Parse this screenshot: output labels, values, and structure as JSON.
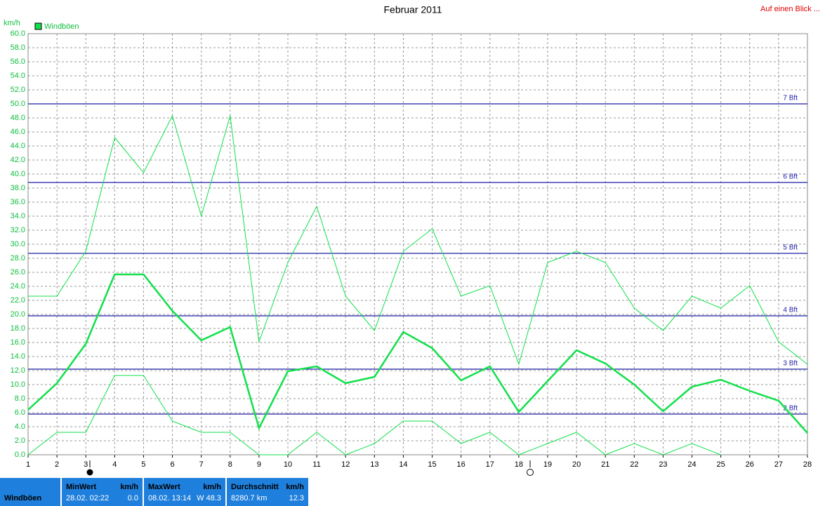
{
  "chart_data": {
    "type": "line",
    "title": "Februar 2011",
    "y_label": "km/h",
    "link": "Auf einen Blick ...",
    "x": [
      1,
      2,
      3,
      4,
      5,
      6,
      7,
      8,
      9,
      10,
      11,
      12,
      13,
      14,
      15,
      16,
      17,
      18,
      19,
      20,
      21,
      22,
      23,
      24,
      25,
      26,
      27,
      28
    ],
    "xlim": [
      1,
      28
    ],
    "xticks": [
      1,
      2,
      3,
      4,
      5,
      6,
      7,
      8,
      9,
      10,
      11,
      12,
      13,
      14,
      15,
      16,
      17,
      18,
      19,
      20,
      21,
      22,
      23,
      24,
      25,
      26,
      27,
      28
    ],
    "ylim": [
      0,
      60
    ],
    "yticks": [
      {
        "value": 0,
        "label": "0.0"
      },
      {
        "value": 2,
        "label": "2.0"
      },
      {
        "value": 4,
        "label": "4.0"
      },
      {
        "value": 6,
        "label": "6.0"
      },
      {
        "value": 8,
        "label": "8.0"
      },
      {
        "value": 10,
        "label": "10.0"
      },
      {
        "value": 12,
        "label": "12.0"
      },
      {
        "value": 14,
        "label": "14.0"
      },
      {
        "value": 16,
        "label": "16.0"
      },
      {
        "value": 18,
        "label": "18.0"
      },
      {
        "value": 20,
        "label": "20.0"
      },
      {
        "value": 22,
        "label": "22.0"
      },
      {
        "value": 24,
        "label": "24.0"
      },
      {
        "value": 26,
        "label": "26.0"
      },
      {
        "value": 28,
        "label": "28.0"
      },
      {
        "value": 30,
        "label": "30.0"
      },
      {
        "value": 32,
        "label": "32.0"
      },
      {
        "value": 34,
        "label": "34.0"
      },
      {
        "value": 36,
        "label": "36.0"
      },
      {
        "value": 38,
        "label": "38.0"
      },
      {
        "value": 40,
        "label": "40.0"
      },
      {
        "value": 42,
        "label": "42.0"
      },
      {
        "value": 44,
        "label": "44.0"
      },
      {
        "value": 46,
        "label": "46.0"
      },
      {
        "value": 48,
        "label": "48.0"
      },
      {
        "value": 50,
        "label": "50.0"
      },
      {
        "value": 52,
        "label": "52.0"
      },
      {
        "value": 54,
        "label": "54.0"
      },
      {
        "value": 56,
        "label": "56.0"
      },
      {
        "value": 58,
        "label": "58.0"
      },
      {
        "value": 60,
        "label": "60.0"
      }
    ],
    "grid": true,
    "series": [
      {
        "name": "Windböen",
        "color": "#11e04a",
        "values": [
          6.4,
          10.2,
          15.8,
          25.7,
          25.7,
          20.5,
          16.3,
          18.2,
          3.8,
          11.9,
          12.6,
          10.2,
          11.1,
          17.5,
          15.2,
          10.6,
          12.6,
          6.1,
          10.5,
          14.9,
          13.0,
          10.0,
          6.2,
          9.7,
          10.7,
          9.1,
          7.7,
          3.1
        ],
        "max_values": [
          22.6,
          22.6,
          29.0,
          45.2,
          40.2,
          48.3,
          34.0,
          48.3,
          16.1,
          27.4,
          35.4,
          22.6,
          17.7,
          29.0,
          32.2,
          22.6,
          24.1,
          12.9,
          27.4,
          29.0,
          27.4,
          20.9,
          17.7,
          22.6,
          20.9,
          24.1,
          16.1,
          12.9
        ],
        "min_values": [
          0,
          3.2,
          3.2,
          11.3,
          11.3,
          4.8,
          3.2,
          3.2,
          0,
          0,
          3.2,
          0,
          1.6,
          4.8,
          4.8,
          1.6,
          3.2,
          0,
          1.6,
          3.2,
          0,
          1.6,
          0,
          1.6,
          0,
          null,
          null,
          null
        ]
      }
    ],
    "reference_lines": [
      {
        "value": 50,
        "label": "7 Bft"
      },
      {
        "value": 38.8,
        "label": "6 Bft"
      },
      {
        "value": 28.7,
        "label": "5 Bft"
      },
      {
        "value": 19.8,
        "label": "4 Bft"
      },
      {
        "value": 12.2,
        "label": "3 Bft"
      },
      {
        "value": 5.8,
        "label": "2 Bft"
      }
    ],
    "reference_color": "#1c1ca8"
  },
  "summary": {
    "label": "Windböen",
    "cells": [
      {
        "title": "MinWert",
        "unit": "km/h",
        "when": "28.02. 02:22",
        "value": "0.0"
      },
      {
        "title": "MaxWert",
        "unit": "km/h",
        "when": "08.02. 13:14",
        "value": "W 48.3"
      },
      {
        "title": "Durchschnitt",
        "unit": "km/h",
        "when": "8280.7 km",
        "value": "12.3"
      }
    ]
  }
}
